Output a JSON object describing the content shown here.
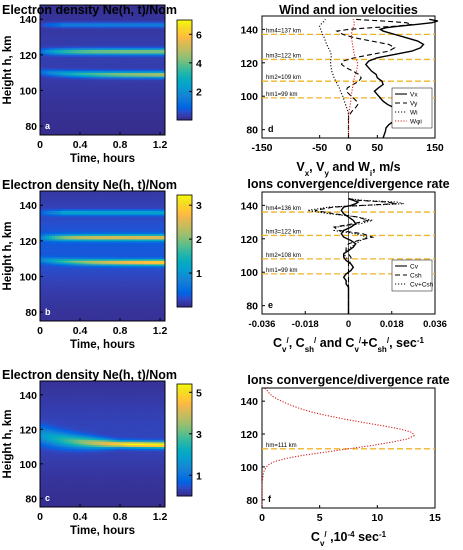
{
  "chart_data": [
    {
      "type": "heatmap",
      "panel_label": "a",
      "title": "Electron density Ne(h, t)/Nom",
      "xlabel": "Time, hours",
      "ylabel": "Height h, km",
      "xlim": [
        0,
        1.25
      ],
      "ylim": [
        75,
        148
      ],
      "xticks": [
        "0",
        "0.4",
        "0.8",
        "1.2"
      ],
      "yticks": [
        "80",
        "100",
        "120",
        "140"
      ],
      "colorbar_ticks": [
        "2",
        "4",
        "6"
      ],
      "colorbar_range": [
        0,
        7
      ],
      "layers": [
        {
          "height_km": 137,
          "peak": 1.6
        },
        {
          "height_km": 122,
          "peak": 4.2
        },
        {
          "height_km": 109,
          "peak": 5.2
        }
      ]
    },
    {
      "type": "line",
      "panel_label": "d",
      "title": "Wind and ion velocities",
      "xlabel": "Vₓ, Vᵧ and Wᵢ, m/s",
      "ylabel": "",
      "xlim": [
        -150,
        150
      ],
      "ylim": [
        75,
        148
      ],
      "xticks": [
        "-150",
        "-50",
        "0",
        "50",
        "150"
      ],
      "yticks": [
        "80",
        "100",
        "120",
        "140"
      ],
      "legend_position": "right",
      "legend": [
        "Vx",
        "Vy",
        "Wi",
        "Wφi"
      ],
      "reference_heights": [
        {
          "label": "hm4=137 km",
          "height_km": 137
        },
        {
          "label": "hm3=122 km",
          "height_km": 122
        },
        {
          "label": "hm2=109 km",
          "height_km": 109
        },
        {
          "label": "hm1=99 km",
          "height_km": 99
        }
      ],
      "series": [
        {
          "name": "Vx",
          "style": "solid",
          "x": [
            60,
            62,
            64,
            65,
            70,
            78,
            88,
            95,
            90,
            80,
            68,
            60,
            55,
            50,
            45,
            52,
            60,
            58,
            50,
            48,
            40,
            35,
            30,
            35,
            50,
            80,
            110,
            125,
            130,
            120,
            100,
            80,
            60,
            55,
            65,
            90,
            120,
            145,
            155,
            140
          ],
          "y": [
            75,
            77,
            79,
            81,
            83,
            85,
            87,
            89,
            91,
            93,
            95,
            97,
            99,
            101,
            103,
            105,
            107,
            109,
            111,
            113,
            115,
            117,
            119,
            121,
            123,
            125,
            127,
            129,
            131,
            133,
            135,
            137,
            139,
            140,
            141,
            142,
            143,
            144,
            145,
            146
          ]
        },
        {
          "name": "Vy",
          "style": "dashed",
          "x": [
            0,
            0,
            0,
            0,
            0,
            0,
            0,
            2,
            6,
            12,
            16,
            14,
            8,
            2,
            -4,
            -2,
            8,
            18,
            22,
            18,
            8,
            -4,
            -12,
            -10,
            10,
            40,
            70,
            80,
            70,
            40,
            10,
            -10,
            -20,
            0,
            40,
            85,
            110,
            100,
            60,
            10
          ],
          "y": [
            75,
            77,
            79,
            81,
            83,
            85,
            87,
            89,
            91,
            93,
            95,
            97,
            99,
            101,
            103,
            105,
            107,
            109,
            111,
            113,
            115,
            117,
            119,
            121,
            123,
            125,
            127,
            129,
            131,
            133,
            135,
            137,
            139,
            140,
            141,
            142,
            143,
            144,
            145,
            146
          ]
        },
        {
          "name": "Wi",
          "style": "dotted",
          "x": [
            0,
            0,
            0,
            0,
            0,
            0,
            0,
            0,
            -1,
            -3,
            -5,
            -7,
            -9,
            -11,
            -14,
            -16,
            -19,
            -22,
            -25,
            -27,
            -29,
            -30,
            -31,
            -31,
            -30,
            -30,
            -32,
            -35,
            -38,
            -40,
            -42,
            -45,
            -47,
            -48,
            -50,
            -50,
            -48,
            -45,
            -42,
            -40
          ],
          "y": [
            75,
            77,
            79,
            81,
            83,
            85,
            87,
            89,
            91,
            93,
            95,
            97,
            99,
            101,
            103,
            105,
            107,
            109,
            111,
            113,
            115,
            117,
            119,
            121,
            123,
            125,
            127,
            129,
            131,
            133,
            135,
            137,
            139,
            140,
            141,
            142,
            143,
            144,
            145,
            146
          ]
        },
        {
          "name": "Wφi",
          "style": "dotted-red",
          "x": [
            0,
            0,
            0,
            0,
            0,
            0,
            0,
            0,
            1,
            2,
            3,
            4,
            4,
            5,
            6,
            7,
            8,
            9,
            10,
            12,
            14,
            15,
            16,
            15,
            12,
            10,
            9,
            8,
            7,
            6,
            5,
            5,
            6,
            7,
            8,
            9,
            10,
            10,
            9,
            8
          ],
          "y": [
            75,
            77,
            79,
            81,
            83,
            85,
            87,
            89,
            91,
            93,
            95,
            97,
            99,
            101,
            103,
            105,
            107,
            109,
            111,
            113,
            115,
            117,
            119,
            121,
            123,
            125,
            127,
            129,
            131,
            133,
            135,
            137,
            139,
            140,
            141,
            142,
            143,
            144,
            145,
            146
          ]
        }
      ]
    },
    {
      "type": "heatmap",
      "panel_label": "b",
      "title": "Electron density Ne(h, t)/Nom",
      "xlabel": "Time, hours",
      "ylabel": "Height h, km",
      "xlim": [
        0,
        1.25
      ],
      "ylim": [
        75,
        148
      ],
      "xticks": [
        "0",
        "0.4",
        "0.8",
        "1.2"
      ],
      "yticks": [
        "80",
        "100",
        "120",
        "140"
      ],
      "colorbar_ticks": [
        "1",
        "2",
        "3"
      ],
      "colorbar_range": [
        0,
        3.3
      ],
      "layers": [
        {
          "height_km": 136,
          "peak": 1.2
        },
        {
          "height_km": 122,
          "peak": 2.4
        },
        {
          "height_km": 108,
          "peak": 3.1
        }
      ]
    },
    {
      "type": "line",
      "panel_label": "e",
      "title": "Ions convergence/divergence rate",
      "xlabel": "Cᵥᴵ, Cₛₕᴵ and Cᵥᴵ+Cₛₕᴵ, sec⁻¹",
      "ylabel": "",
      "xlim": [
        -0.036,
        0.036
      ],
      "ylim": [
        75,
        148
      ],
      "xticks": [
        "-0.036",
        "-0.018",
        "0",
        "0.018",
        "0.036"
      ],
      "yticks": [
        "80",
        "100",
        "120",
        "140"
      ],
      "legend_position": "right",
      "legend": [
        "Cv",
        "Csh",
        "Cv+Csh"
      ],
      "reference_heights": [
        {
          "label": "hm4=136 km",
          "height_km": 136
        },
        {
          "label": "hm3=122 km",
          "height_km": 122
        },
        {
          "label": "hm2=108 km",
          "height_km": 108
        },
        {
          "label": "hm1=99 km",
          "height_km": 99
        }
      ],
      "series": [
        {
          "name": "Cv",
          "style": "solid",
          "x": [
            0,
            0,
            0,
            0,
            0,
            0,
            0,
            0,
            0,
            -0.001,
            -0.001,
            -0.002,
            -0.001,
            0.001,
            0.002,
            0.001,
            -0.001,
            -0.002,
            -0.002,
            0,
            0.002,
            0.003,
            0.001,
            -0.002,
            -0.003,
            -0.002,
            0.001,
            0.003,
            0.002,
            0,
            -0.002,
            -0.003,
            -0.002,
            0.001,
            0.003,
            0.004,
            0.002,
            0
          ],
          "y": [
            75,
            77,
            79,
            81,
            83,
            85,
            87,
            89,
            91,
            93,
            95,
            97,
            99,
            101,
            103,
            105,
            107,
            109,
            111,
            113,
            115,
            117,
            119,
            121,
            123,
            125,
            127,
            129,
            131,
            133,
            135,
            137,
            139,
            140,
            141,
            142,
            143,
            144
          ]
        },
        {
          "name": "Csh",
          "style": "dashed",
          "x": [
            0,
            0,
            0,
            0,
            0,
            0,
            0,
            0,
            0,
            0,
            0,
            0,
            0,
            0,
            0,
            0,
            0.001,
            0.001,
            0,
            -0.001,
            -0.001,
            0,
            0.004,
            0.01,
            0.006,
            -0.004,
            -0.006,
            0.002,
            0.008,
            0.004,
            -0.006,
            -0.014,
            -0.006,
            0.006,
            0.02,
            0.016,
            0.004,
            0
          ],
          "y": [
            75,
            77,
            79,
            81,
            83,
            85,
            87,
            89,
            91,
            93,
            95,
            97,
            99,
            101,
            103,
            105,
            107,
            109,
            111,
            113,
            115,
            117,
            119,
            121,
            123,
            125,
            127,
            129,
            131,
            133,
            135,
            137,
            139,
            140,
            141,
            142,
            143,
            144
          ]
        },
        {
          "name": "Cv+Csh",
          "style": "dotted",
          "x": [
            0,
            0,
            0,
            0,
            0,
            0,
            0,
            0,
            0,
            -0.001,
            -0.001,
            -0.002,
            -0.001,
            0.001,
            0.002,
            0.001,
            0,
            -0.001,
            -0.002,
            -0.001,
            0.001,
            0.003,
            0.005,
            0.008,
            0.003,
            -0.006,
            -0.005,
            0.005,
            0.01,
            0.004,
            -0.008,
            -0.017,
            -0.008,
            0.007,
            0.023,
            0.02,
            0.006,
            0
          ],
          "y": [
            75,
            77,
            79,
            81,
            83,
            85,
            87,
            89,
            91,
            93,
            95,
            97,
            99,
            101,
            103,
            105,
            107,
            109,
            111,
            113,
            115,
            117,
            119,
            121,
            123,
            125,
            127,
            129,
            131,
            133,
            135,
            137,
            139,
            140,
            141,
            142,
            143,
            144
          ]
        }
      ]
    },
    {
      "type": "heatmap",
      "panel_label": "c",
      "title": "Electron density Ne(h, t)/Nom",
      "xlabel": "Time, hours",
      "ylabel": "Height h, km",
      "xlim": [
        0,
        1.25
      ],
      "ylim": [
        75,
        148
      ],
      "xticks": [
        "0",
        "0.4",
        "0.8",
        "1.2"
      ],
      "yticks": [
        "80",
        "100",
        "120",
        "140"
      ],
      "colorbar_ticks": [
        "1",
        "3",
        "5"
      ],
      "colorbar_range": [
        0,
        5.4
      ],
      "layers": [
        {
          "height_km": 111,
          "peak": 5.1
        }
      ]
    },
    {
      "type": "line",
      "panel_label": "f",
      "title": "Ions convergence/divergence rate",
      "xlabel": "Cᵥᴵ ,10⁻⁴  sec⁻¹",
      "ylabel": "",
      "xlim": [
        0,
        15
      ],
      "ylim": [
        75,
        148
      ],
      "xticks": [
        "0",
        "5",
        "10",
        "15"
      ],
      "yticks": [
        "80",
        "100",
        "120",
        "140"
      ],
      "reference_heights": [
        {
          "label": "hm=111 km",
          "height_km": 111
        }
      ],
      "series": [
        {
          "name": "Cv",
          "style": "dotted-red",
          "x": [
            0,
            0,
            0,
            0,
            0.1,
            0.2,
            0.5,
            1,
            2,
            3.5,
            5.5,
            7.5,
            9.5,
            11.2,
            12.6,
            13.2,
            13,
            12,
            10.5,
            8.8,
            7.2,
            5.8,
            4.5,
            3.5,
            2.7,
            2,
            1.4,
            0.9,
            0.6,
            0.4,
            0.2
          ],
          "y": [
            75,
            80,
            85,
            90,
            95,
            98,
            101,
            103,
            105,
            107,
            109,
            111,
            113,
            115,
            117,
            119,
            121,
            123,
            125,
            127,
            129,
            131,
            133,
            135,
            137,
            139,
            141,
            143,
            145,
            147,
            148
          ]
        }
      ]
    }
  ]
}
